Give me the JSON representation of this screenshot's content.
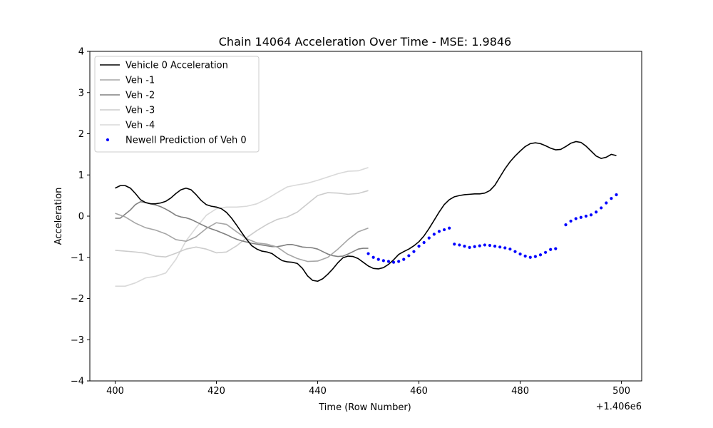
{
  "chart_data": {
    "type": "line",
    "title": "Chain 14064 Acceleration Over Time - MSE: 1.9846",
    "xlabel": "Time (Row Number)",
    "ylabel": "Acceleration",
    "x_offset_label": "+1.406e6",
    "xlim": [
      395,
      504
    ],
    "ylim": [
      -4,
      4
    ],
    "xticks": [
      400,
      420,
      440,
      460,
      480,
      500
    ],
    "yticks": [
      -4,
      -3,
      -2,
      -1,
      0,
      1,
      2,
      3,
      4
    ],
    "xtick_labels": [
      "400",
      "420",
      "440",
      "460",
      "480",
      "500"
    ],
    "ytick_labels": [
      "−4",
      "−3",
      "−2",
      "−1",
      "0",
      "1",
      "2",
      "3",
      "4"
    ],
    "grid": false,
    "legend_position": "top-left",
    "series": [
      {
        "name": "Vehicle 0 Acceleration",
        "style": "line",
        "color": "#000000",
        "x": [
          400,
          401,
          402,
          403,
          404,
          405,
          406,
          407,
          408,
          409,
          410,
          411,
          412,
          413,
          414,
          415,
          416,
          417,
          418,
          419,
          420,
          421,
          422,
          423,
          424,
          425,
          426,
          427,
          428,
          429,
          430,
          431,
          432,
          433,
          434,
          435,
          436,
          437,
          438,
          439,
          440,
          441,
          442,
          443,
          444,
          445,
          446,
          447,
          448,
          449,
          450,
          451,
          452,
          453,
          454,
          455,
          456,
          457,
          458,
          459,
          460,
          461,
          462,
          463,
          464,
          465,
          466,
          467,
          468,
          469,
          470,
          471,
          472,
          473,
          474,
          475,
          476,
          477,
          478,
          479,
          480,
          481,
          482,
          483,
          484,
          485,
          486,
          487,
          488,
          489,
          490,
          491,
          492,
          493,
          494,
          495,
          496,
          497,
          498,
          499
        ],
        "y": [
          0.68,
          0.74,
          0.74,
          0.68,
          0.55,
          0.4,
          0.33,
          0.3,
          0.3,
          0.32,
          0.36,
          0.44,
          0.55,
          0.64,
          0.68,
          0.64,
          0.52,
          0.38,
          0.28,
          0.24,
          0.22,
          0.18,
          0.09,
          -0.05,
          -0.22,
          -0.4,
          -0.57,
          -0.72,
          -0.8,
          -0.85,
          -0.87,
          -0.91,
          -1.0,
          -1.08,
          -1.11,
          -1.12,
          -1.15,
          -1.27,
          -1.45,
          -1.56,
          -1.58,
          -1.52,
          -1.41,
          -1.28,
          -1.13,
          -1.01,
          -0.97,
          -0.98,
          -1.03,
          -1.12,
          -1.21,
          -1.27,
          -1.28,
          -1.25,
          -1.17,
          -1.06,
          -0.93,
          -0.86,
          -0.8,
          -0.72,
          -0.62,
          -0.48,
          -0.3,
          -0.1,
          0.1,
          0.28,
          0.4,
          0.47,
          0.5,
          0.52,
          0.53,
          0.54,
          0.54,
          0.56,
          0.62,
          0.75,
          0.95,
          1.15,
          1.32,
          1.46,
          1.58,
          1.69,
          1.76,
          1.78,
          1.76,
          1.71,
          1.65,
          1.61,
          1.62,
          1.69,
          1.77,
          1.81,
          1.79,
          1.7,
          1.58,
          1.46,
          1.4,
          1.43,
          1.5,
          1.47
        ]
      },
      {
        "name": "Veh -1",
        "style": "line",
        "color": "#a6a6a6",
        "x": [
          400,
          402,
          404,
          406,
          408,
          410,
          412,
          414,
          416,
          418,
          420,
          422,
          424,
          426,
          428,
          430,
          432,
          434,
          436,
          438,
          440,
          442,
          444,
          446,
          448,
          450
        ],
        "y": [
          0.07,
          -0.02,
          -0.17,
          -0.28,
          -0.34,
          -0.43,
          -0.57,
          -0.61,
          -0.5,
          -0.3,
          -0.16,
          -0.2,
          -0.38,
          -0.55,
          -0.65,
          -0.68,
          -0.75,
          -0.92,
          -1.03,
          -1.1,
          -1.09,
          -1.0,
          -0.8,
          -0.57,
          -0.38,
          -0.29
        ]
      },
      {
        "name": "Veh -2",
        "style": "line",
        "color": "#808080",
        "x": [
          400,
          401,
          402,
          403,
          404,
          405,
          406,
          407,
          408,
          409,
          410,
          411,
          412,
          413,
          414,
          415,
          416,
          417,
          418,
          419,
          420,
          421,
          422,
          423,
          424,
          425,
          426,
          427,
          428,
          429,
          430,
          431,
          432,
          433,
          434,
          435,
          436,
          437,
          438,
          439,
          440,
          441,
          442,
          443,
          444,
          445,
          446,
          447,
          448,
          449,
          450
        ],
        "y": [
          -0.05,
          -0.05,
          0.05,
          0.15,
          0.28,
          0.35,
          0.33,
          0.3,
          0.27,
          0.23,
          0.17,
          0.1,
          0.02,
          -0.02,
          -0.04,
          -0.08,
          -0.14,
          -0.2,
          -0.26,
          -0.31,
          -0.35,
          -0.4,
          -0.45,
          -0.51,
          -0.56,
          -0.6,
          -0.63,
          -0.66,
          -0.68,
          -0.7,
          -0.72,
          -0.74,
          -0.74,
          -0.72,
          -0.69,
          -0.69,
          -0.72,
          -0.75,
          -0.76,
          -0.77,
          -0.8,
          -0.86,
          -0.92,
          -0.96,
          -0.98,
          -0.97,
          -0.92,
          -0.86,
          -0.8,
          -0.78,
          -0.78
        ]
      },
      {
        "name": "Veh -3",
        "style": "line",
        "color": "#cccccc",
        "x": [
          400,
          402,
          404,
          406,
          408,
          410,
          412,
          414,
          416,
          418,
          420,
          422,
          424,
          426,
          428,
          430,
          432,
          434,
          436,
          438,
          440,
          442,
          444,
          446,
          448,
          450
        ],
        "y": [
          -0.83,
          -0.85,
          -0.87,
          -0.9,
          -0.97,
          -0.99,
          -0.9,
          -0.8,
          -0.75,
          -0.8,
          -0.89,
          -0.87,
          -0.72,
          -0.52,
          -0.35,
          -0.2,
          -0.08,
          -0.02,
          0.1,
          0.3,
          0.5,
          0.57,
          0.56,
          0.53,
          0.55,
          0.62
        ]
      },
      {
        "name": "Veh -4",
        "style": "line",
        "color": "#d9d9d9",
        "x": [
          400,
          402,
          404,
          406,
          408,
          410,
          412,
          414,
          416,
          418,
          420,
          422,
          424,
          426,
          428,
          430,
          432,
          434,
          436,
          438,
          440,
          442,
          444,
          446,
          448,
          450
        ],
        "y": [
          -1.7,
          -1.7,
          -1.62,
          -1.5,
          -1.46,
          -1.38,
          -1.05,
          -0.6,
          -0.28,
          0.02,
          0.18,
          0.22,
          0.22,
          0.24,
          0.3,
          0.42,
          0.57,
          0.71,
          0.76,
          0.8,
          0.87,
          0.95,
          1.03,
          1.09,
          1.1,
          1.18
        ]
      },
      {
        "name": "Newell Prediction of Veh 0",
        "style": "dots",
        "color": "#0000ff",
        "x": [
          450,
          451,
          452,
          453,
          454,
          455,
          456,
          457,
          458,
          459,
          460,
          461,
          462,
          463,
          464,
          465,
          466,
          467,
          468,
          469,
          470,
          471,
          472,
          473,
          474,
          475,
          476,
          477,
          478,
          479,
          480,
          481,
          482,
          483,
          484,
          485,
          486,
          487,
          488,
          489,
          490,
          491,
          492,
          493,
          494,
          495,
          496,
          497,
          498,
          499
        ],
        "y": [
          -0.91,
          -1.0,
          -1.05,
          -1.08,
          -1.1,
          -1.12,
          -1.1,
          -1.05,
          -0.96,
          -0.86,
          -0.73,
          -0.64,
          -0.53,
          -0.44,
          -0.37,
          -0.33,
          -0.29,
          -0.68,
          -0.7,
          -0.73,
          -0.76,
          -0.74,
          -0.72,
          -0.7,
          -0.71,
          -0.73,
          -0.75,
          -0.77,
          -0.8,
          -0.86,
          -0.92,
          -0.97,
          -1.0,
          -0.98,
          -0.94,
          -0.88,
          -0.81,
          -0.79,
          null,
          -0.21,
          -0.12,
          -0.06,
          -0.03,
          0.0,
          0.03,
          0.1,
          0.2,
          0.32,
          0.43,
          0.52
        ]
      }
    ]
  }
}
